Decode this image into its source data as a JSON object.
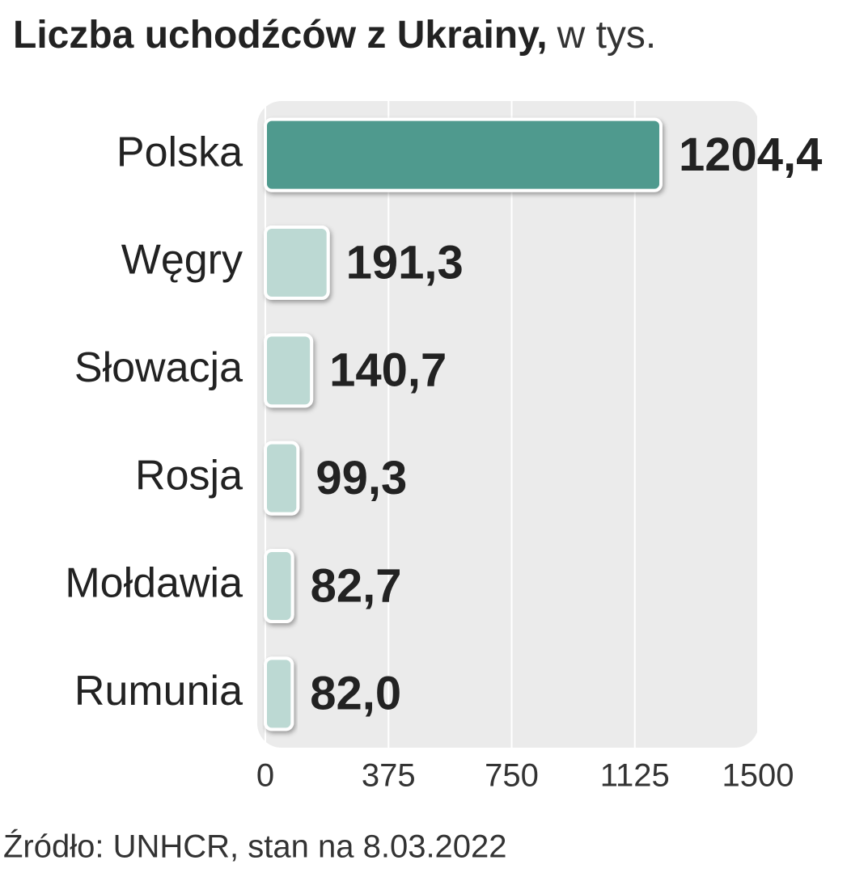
{
  "chart_data": {
    "type": "bar",
    "orientation": "horizontal",
    "title": "Liczba uchodźców z Ukrainy,",
    "unit": "w tys.",
    "categories": [
      "Polska",
      "Węgry",
      "Słowacja",
      "Rosja",
      "Mołdawia",
      "Rumunia"
    ],
    "values": [
      1204.4,
      191.3,
      140.7,
      99.3,
      82.7,
      82.0
    ],
    "value_labels": [
      "1204,4",
      "191,3",
      "140,7",
      "99,3",
      "82,7",
      "82,0"
    ],
    "colors": [
      "#4f9a8e",
      "#bcd9d3",
      "#bcd9d3",
      "#bcd9d3",
      "#bcd9d3",
      "#bcd9d3"
    ],
    "xlim": [
      0,
      1500
    ],
    "xticks": [
      0,
      375,
      750,
      1125,
      1500
    ],
    "grid": true,
    "source": "Źródło: UNHCR, stan na 8.03.2022"
  }
}
